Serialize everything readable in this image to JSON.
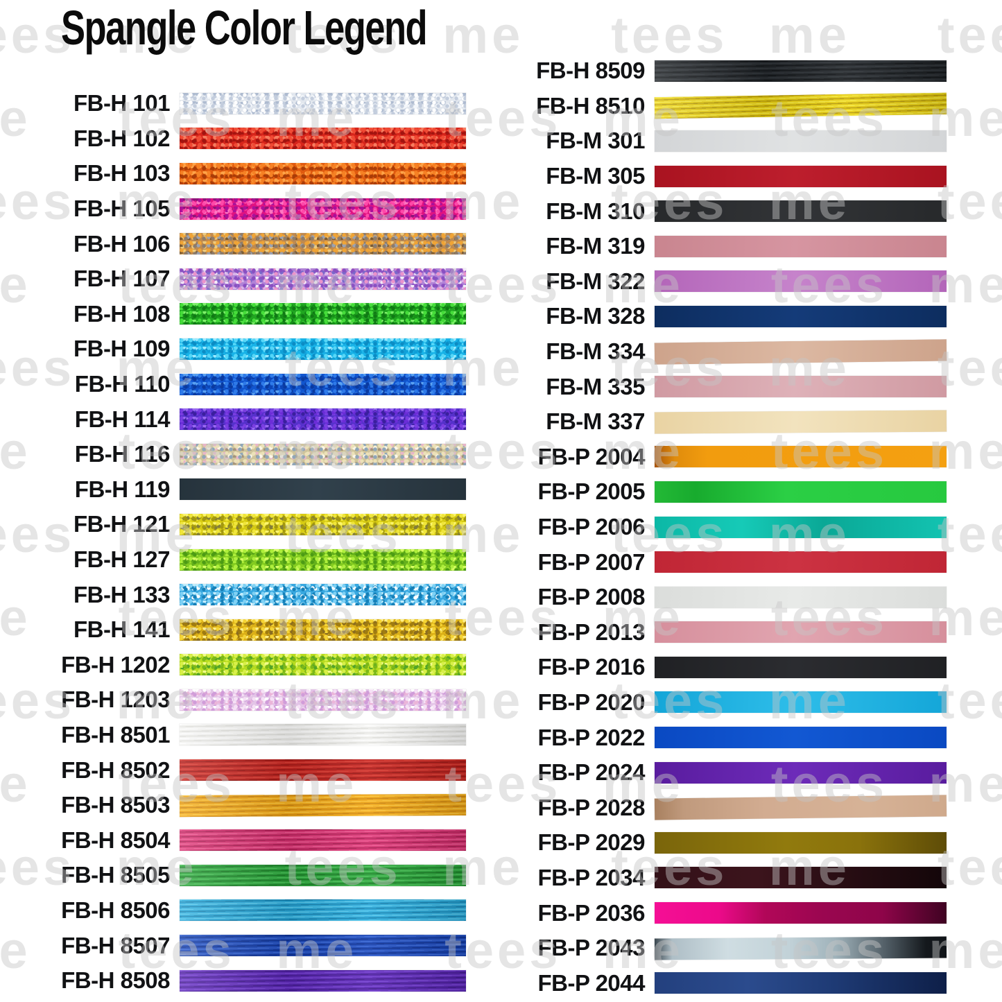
{
  "title": "Spangle Color Legend",
  "watermark": {
    "text": "tees me",
    "color_hex": "#c6c6c6"
  },
  "chart_data": {
    "type": "table",
    "title": "Spangle Color Legend",
    "columns": [
      "code",
      "finish",
      "swatch_colors"
    ],
    "left_rows": [
      {
        "code": "FB-H 101",
        "finish": "glitter",
        "colors": [
          "#e2e7ee",
          "#ffffff",
          "#c3cddd",
          "#aebbd0",
          "#f4f7fb"
        ]
      },
      {
        "code": "FB-H 102",
        "finish": "glitter",
        "colors": [
          "#d7251b",
          "#f04a34",
          "#a31410",
          "#f77d60"
        ]
      },
      {
        "code": "FB-H 103",
        "finish": "glitter",
        "colors": [
          "#e05a0f",
          "#f68124",
          "#aa3c07",
          "#ffa448"
        ]
      },
      {
        "code": "FB-H 105",
        "finish": "glitter",
        "colors": [
          "#e01280",
          "#ab109a",
          "#ff49a9",
          "#8d1578",
          "#ff77c2"
        ]
      },
      {
        "code": "FB-H 106",
        "finish": "glitter",
        "colors": [
          "#bf8a4f",
          "#f0a435",
          "#8c7c6c",
          "#ecca7e",
          "#9aa2b2",
          "#7c5c34"
        ]
      },
      {
        "code": "FB-H 107",
        "finish": "glitter",
        "colors": [
          "#b183d7",
          "#8a50c2",
          "#eb93cb",
          "#f4ecf8",
          "#7a68ca",
          "#d9b5ea"
        ]
      },
      {
        "code": "FB-H 108",
        "finish": "glitter",
        "colors": [
          "#20a621",
          "#45dd3a",
          "#0f7a14",
          "#7ef06a",
          "#169018"
        ]
      },
      {
        "code": "FB-H 109",
        "finish": "glitter",
        "colors": [
          "#17b3e8",
          "#55d7f8",
          "#0b8cc4",
          "#9ceaff",
          "#0fa0d8"
        ]
      },
      {
        "code": "FB-H 110",
        "finish": "glitter",
        "colors": [
          "#1155cf",
          "#2e7ae9",
          "#0a3aa0",
          "#5aa2f2",
          "#0c46b8"
        ]
      },
      {
        "code": "FB-H 114",
        "finish": "glitter",
        "colors": [
          "#5531cb",
          "#7a3ee2",
          "#3a1f9e",
          "#9a6af2",
          "#6b2cd8"
        ]
      },
      {
        "code": "FB-H 116",
        "finish": "glitter",
        "colors": [
          "#cfc49b",
          "#ece1b8",
          "#8fa6b8",
          "#e9b5c9",
          "#fcf7e6",
          "#a4947a"
        ]
      },
      {
        "code": "FB-H 119",
        "finish": "smooth",
        "colors": [
          "#26333c",
          "#31414c"
        ]
      },
      {
        "code": "FB-H 121",
        "finish": "glitter",
        "colors": [
          "#d7cb12",
          "#f0e63a",
          "#a3980f",
          "#fcf56e",
          "#837e38"
        ]
      },
      {
        "code": "FB-H 127",
        "finish": "glitter",
        "colors": [
          "#83cb20",
          "#aeef3c",
          "#4c9b14",
          "#d5fc62",
          "#64b01c"
        ]
      },
      {
        "code": "FB-H 133",
        "finish": "glitter",
        "colors": [
          "#38a8e0",
          "#7ed1f5",
          "#1580b8",
          "#c2edfc",
          "#ffffff"
        ]
      },
      {
        "code": "FB-H 141",
        "finish": "glitter",
        "colors": [
          "#dcb017",
          "#f5d435",
          "#a07c10",
          "#ffef8a",
          "#8a6c20"
        ]
      },
      {
        "code": "FB-H 1202",
        "finish": "glitter",
        "colors": [
          "#b7dc1f",
          "#d8f048",
          "#7cb818",
          "#f1fc8a",
          "#52a428"
        ]
      },
      {
        "code": "FB-H 1203",
        "finish": "glitter",
        "colors": [
          "#e3c5e7",
          "#f6e1f6",
          "#d09cd9",
          "#ffffff",
          "#ebb5d9"
        ]
      },
      {
        "code": "FB-H 8501",
        "finish": "striped",
        "colors": [
          "#f3f3f1",
          "#ffffff",
          "#dededa"
        ]
      },
      {
        "code": "FB-H 8502",
        "finish": "striped",
        "colors": [
          "#c32521",
          "#df4136",
          "#971512"
        ]
      },
      {
        "code": "FB-H 8503",
        "finish": "striped",
        "colors": [
          "#f0a718",
          "#ffc93e",
          "#cb820e"
        ],
        "tilt": -0.3
      },
      {
        "code": "FB-H 8504",
        "finish": "striped",
        "colors": [
          "#d73372",
          "#f25b94",
          "#a81b50"
        ]
      },
      {
        "code": "FB-H 8505",
        "finish": "striped",
        "colors": [
          "#2aa23a",
          "#4cc65a",
          "#177822"
        ]
      },
      {
        "code": "FB-H 8506",
        "finish": "striped",
        "colors": [
          "#2ba9d9",
          "#5bcdf1",
          "#147fae"
        ]
      },
      {
        "code": "FB-H 8507",
        "finish": "striped",
        "colors": [
          "#1b47b7",
          "#3a69d9",
          "#0b2d8d"
        ]
      },
      {
        "code": "FB-H 8508",
        "finish": "striped",
        "colors": [
          "#5c28b6",
          "#7b46d9",
          "#3f198a"
        ]
      }
    ],
    "right_rows": [
      {
        "code": "FB-H 8509",
        "finish": "striped",
        "colors": [
          "#22262a",
          "#32373c",
          "#101316"
        ]
      },
      {
        "code": "FB-H 8510",
        "finish": "striped",
        "colors": [
          "#e7cd12",
          "#f9ee45",
          "#b1940a"
        ],
        "tilt": -0.9
      },
      {
        "code": "FB-M 301",
        "finish": "smooth",
        "colors": [
          "#d3d5d7",
          "#e0e2e3"
        ]
      },
      {
        "code": "FB-M 305",
        "finish": "smooth",
        "colors": [
          "#a91320",
          "#bd1e2d"
        ]
      },
      {
        "code": "FB-M 310",
        "finish": "smooth",
        "colors": [
          "#27292b",
          "#323437"
        ]
      },
      {
        "code": "FB-M 319",
        "finish": "smooth",
        "colors": [
          "#c9858f",
          "#d695a1"
        ]
      },
      {
        "code": "FB-M 322",
        "finish": "smooth",
        "colors": [
          "#b365b9",
          "#c683cb"
        ]
      },
      {
        "code": "FB-M 328",
        "finish": "smooth",
        "colors": [
          "#0d2d5f",
          "#143b79"
        ]
      },
      {
        "code": "FB-M 334",
        "finish": "smooth",
        "colors": [
          "#cda38b",
          "#dcb8a2"
        ],
        "tilt": -0.7
      },
      {
        "code": "FB-M 335",
        "finish": "smooth",
        "colors": [
          "#d09aa2",
          "#deb1b8"
        ]
      },
      {
        "code": "FB-M 337",
        "finish": "smooth",
        "colors": [
          "#e9d3a3",
          "#f2e3be"
        ],
        "tilt": -0.4
      },
      {
        "code": "FB-P 2004",
        "finish": "gradient",
        "colors": [
          "#a85408 0%",
          "#e08c0c 7%",
          "#f29c0e 18%",
          "#f4a011 100%"
        ]
      },
      {
        "code": "FB-P 2005",
        "finish": "gradient",
        "colors": [
          "#23b936 0%",
          "#18ab2e 14%",
          "#2bcf45 45%",
          "#27c93f 100%"
        ]
      },
      {
        "code": "FB-P 2006",
        "finish": "gradient",
        "colors": [
          "#0cb8a6 0%",
          "#16cab7 30%",
          "#0aa896 58%",
          "#13c3b1 100%"
        ]
      },
      {
        "code": "FB-P 2007",
        "finish": "smooth",
        "colors": [
          "#c02635",
          "#cc3242"
        ]
      },
      {
        "code": "FB-P 2008",
        "finish": "smooth",
        "colors": [
          "#dbdddb",
          "#e8eae8"
        ]
      },
      {
        "code": "FB-P 2013",
        "finish": "smooth",
        "colors": [
          "#d68f9c",
          "#e1a5b0"
        ]
      },
      {
        "code": "FB-P 2016",
        "finish": "smooth",
        "colors": [
          "#202124",
          "#2b2c30"
        ]
      },
      {
        "code": "FB-P 2020",
        "finish": "smooth",
        "colors": [
          "#14a6d8",
          "#2ebde9"
        ]
      },
      {
        "code": "FB-P 2022",
        "finish": "smooth",
        "colors": [
          "#0a49c2",
          "#1258d3"
        ]
      },
      {
        "code": "FB-P 2024",
        "finish": "smooth",
        "colors": [
          "#591c9e",
          "#6d2bb9"
        ]
      },
      {
        "code": "FB-P 2028",
        "finish": "gradient",
        "colors": [
          "#a8805f 0%",
          "#c09a7d 10%",
          "#d2ac91 38%",
          "#d6b296 72%",
          "#cfa98c 100%"
        ],
        "tilt": -0.7
      },
      {
        "code": "FB-P 2029",
        "finish": "gradient",
        "colors": [
          "#7a650b 0%",
          "#917a0d 45%",
          "#8a720c 70%",
          "#5e4c07 100%"
        ]
      },
      {
        "code": "FB-P 2034",
        "finish": "gradient",
        "colors": [
          "#331118 0%",
          "#3c141c 35%",
          "#2a0e14 62%",
          "#130609 100%"
        ]
      },
      {
        "code": "FB-P 2036",
        "finish": "gradient",
        "colors": [
          "#f50f95 0%",
          "#ec0a8a 22%",
          "#b10758 38%",
          "#9a0650 58%",
          "#8e0549 78%",
          "#3f0322 100%"
        ]
      },
      {
        "code": "FB-P 2043",
        "finish": "gradient",
        "colors": [
          "#3a464e 0%",
          "#aebec6 6%",
          "#cfdde2 25%",
          "#c2d2d8 46%",
          "#9fb2ba 62%",
          "#4e5a62 80%",
          "#14181c 93%",
          "#101418 100%"
        ],
        "tilt": -0.4
      },
      {
        "code": "FB-P 2044",
        "finish": "gradient",
        "colors": [
          "#23407e 0%",
          "#2b4b8d 32%",
          "#1e3a74 62%",
          "#0e1f48 100%"
        ]
      }
    ]
  }
}
